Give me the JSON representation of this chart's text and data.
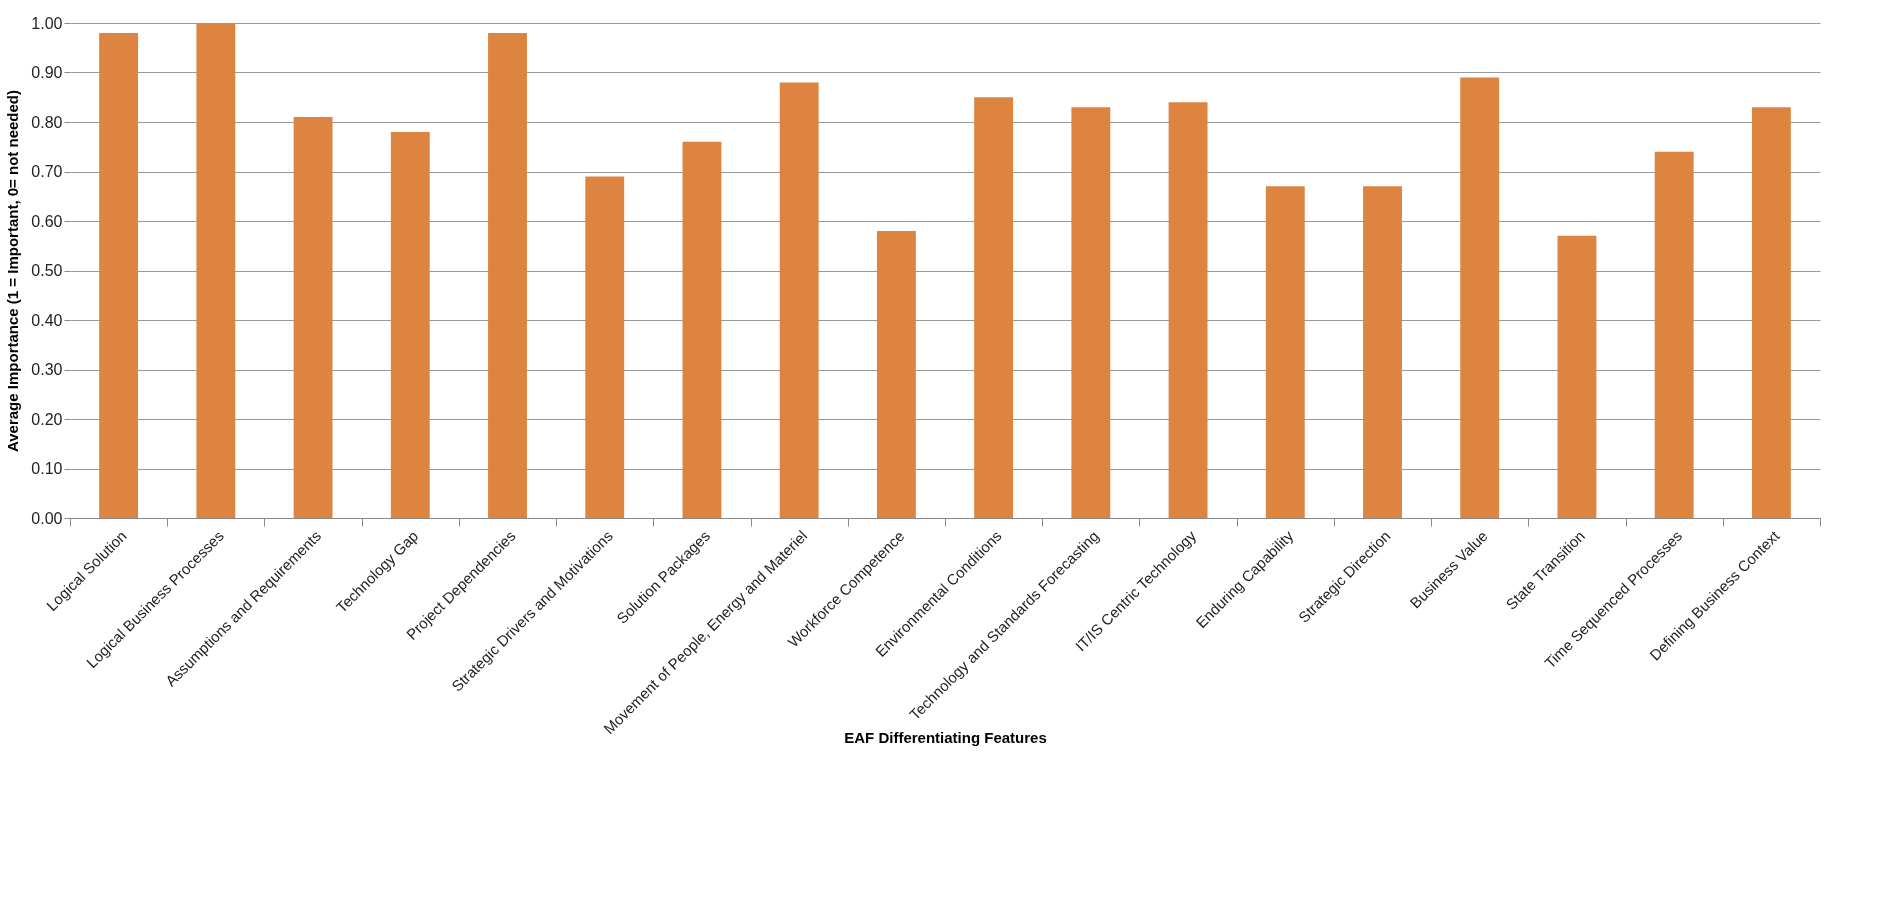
{
  "chart_data": {
    "type": "bar",
    "xlabel": "EAF Differentiating Features",
    "ylabel": "Average Importance (1 = Important, 0= not needed)",
    "categories": [
      "Logical Solution",
      "Logical Business Processes",
      "Assumptions and Requirements",
      "Technology Gap",
      "Project Dependencies",
      "Strategic Drivers and Motivations",
      "Solution Packages",
      "Movement of People, Energy and Materiel",
      "Workforce Competence",
      "Environmental Conditions",
      "Technology and Standards Forecasting",
      "IT/IS Centric Technology",
      "Enduring Capability",
      "Strategic Direction",
      "Business Value",
      "State Transition",
      "Time Sequenced Processes",
      "Defining Business Context"
    ],
    "values": [
      0.98,
      1.0,
      0.81,
      0.78,
      0.98,
      0.69,
      0.76,
      0.88,
      0.58,
      0.85,
      0.83,
      0.84,
      0.67,
      0.67,
      0.89,
      0.57,
      0.74,
      0.83
    ],
    "color": "#dc8440",
    "ylim": [
      0,
      1
    ],
    "yticks": [
      {
        "value": 0,
        "label": "0.00"
      },
      {
        "value": 0.1,
        "label": "0.10"
      },
      {
        "value": 0.2,
        "label": "0.20"
      },
      {
        "value": 0.3,
        "label": "0.30"
      },
      {
        "value": 0.4,
        "label": "0.40"
      },
      {
        "value": 0.5,
        "label": "0.50"
      },
      {
        "value": 0.6,
        "label": "0.60"
      },
      {
        "value": 0.7,
        "label": "0.70"
      },
      {
        "value": 0.8,
        "label": "0.80"
      },
      {
        "value": 0.9,
        "label": "0.90"
      },
      {
        "value": 1,
        "label": "1.00"
      }
    ],
    "grid": "y"
  }
}
